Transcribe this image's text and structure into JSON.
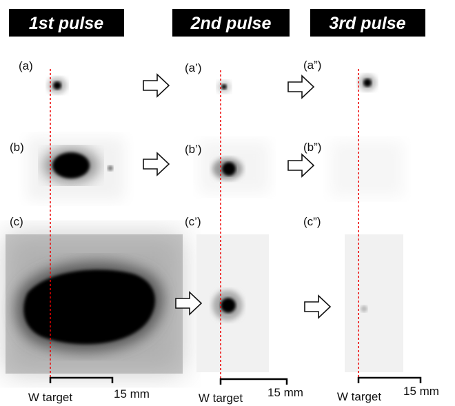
{
  "columns": [
    {
      "header": "1st pulse",
      "panels": [
        "(a)",
        "(b)",
        "(c)"
      ],
      "target_label": "W target",
      "scale_label": "15 mm"
    },
    {
      "header": "2nd pulse",
      "panels": [
        "(a’)",
        "(b’)",
        "(c’)"
      ],
      "target_label": "W target",
      "scale_label": "15 mm"
    },
    {
      "header": "3rd pulse",
      "panels": [
        "(a”)",
        "(b”)",
        "(c”)"
      ],
      "target_label": "W target",
      "scale_label": "15 mm"
    }
  ]
}
